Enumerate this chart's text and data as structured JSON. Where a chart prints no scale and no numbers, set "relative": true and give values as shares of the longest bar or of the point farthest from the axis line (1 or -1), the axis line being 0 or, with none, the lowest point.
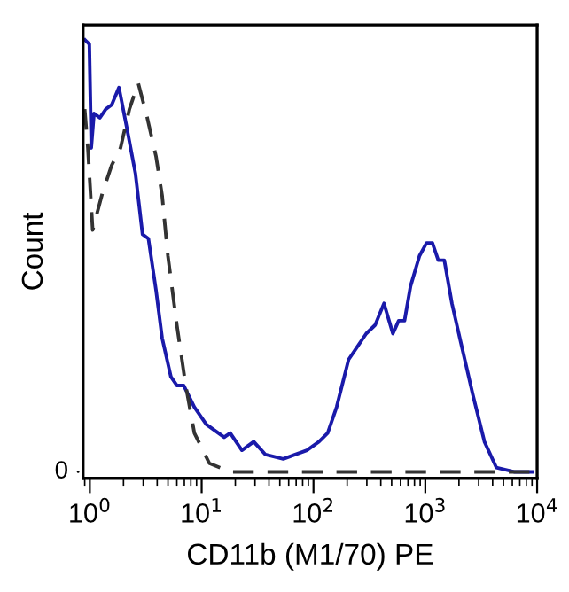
{
  "chart_data": {
    "type": "line",
    "xlabel": "CD11b (M1/70) PE",
    "ylabel": "Count",
    "relative": true,
    "log": "x",
    "xlim": [
      0.87,
      10000
    ],
    "xticks": [
      {
        "value": 1,
        "label": "10$^{0}$"
      },
      {
        "value": 10,
        "label": "10$^{1}$"
      },
      {
        "value": 100,
        "label": "10$^{2}$"
      },
      {
        "value": 1000,
        "label": "10$^{3}$"
      },
      {
        "value": 10000,
        "label": "10$^{4}$"
      }
    ],
    "grid": false,
    "legend": false,
    "annotations": [
      "0"
    ],
    "series": [
      {
        "color": "#1a1aaa",
        "line_style": "solid",
        "x": [
          0.906,
          0.99,
          1.03,
          1.09,
          1.23,
          1.39,
          1.57,
          1.82,
          2.13,
          2.56,
          2.96,
          3.34,
          3.91,
          4.43,
          5.31,
          6.0,
          6.9,
          8.6,
          11.0,
          15.9,
          18.0,
          22.9,
          29.2,
          37.2,
          53.7,
          68.7,
          87.3,
          112,
          134,
          161,
          206,
          247,
          296,
          356,
          427,
          513,
          578,
          652,
          738,
          887,
          1026,
          1157,
          1306,
          1479,
          1730,
          2076,
          2654,
          3378,
          4315,
          6220,
          8960
        ],
        "values": [
          1.0,
          0.99,
          0.75,
          0.83,
          0.82,
          0.84,
          0.85,
          0.89,
          0.8,
          0.69,
          0.55,
          0.54,
          0.42,
          0.31,
          0.22,
          0.2,
          0.2,
          0.15,
          0.11,
          0.08,
          0.09,
          0.05,
          0.07,
          0.04,
          0.03,
          0.04,
          0.05,
          0.07,
          0.09,
          0.15,
          0.26,
          0.29,
          0.32,
          0.34,
          0.39,
          0.32,
          0.35,
          0.35,
          0.43,
          0.5,
          0.53,
          0.53,
          0.49,
          0.49,
          0.39,
          0.3,
          0.18,
          0.07,
          0.01,
          0.0,
          0.0
        ]
      },
      {
        "color": "#333333",
        "line_style": "dashed",
        "x": [
          0.9,
          0.96,
          1.06,
          1.31,
          1.57,
          1.88,
          2.26,
          2.71,
          3.26,
          3.91,
          4.43,
          4.99,
          6.0,
          7.2,
          8.6,
          11.7,
          18.0,
          37.2,
          8960
        ],
        "values": [
          0.84,
          0.75,
          0.56,
          0.65,
          0.71,
          0.75,
          0.84,
          0.9,
          0.82,
          0.73,
          0.64,
          0.5,
          0.34,
          0.2,
          0.09,
          0.02,
          0.0,
          0.0,
          0.0
        ]
      }
    ]
  }
}
